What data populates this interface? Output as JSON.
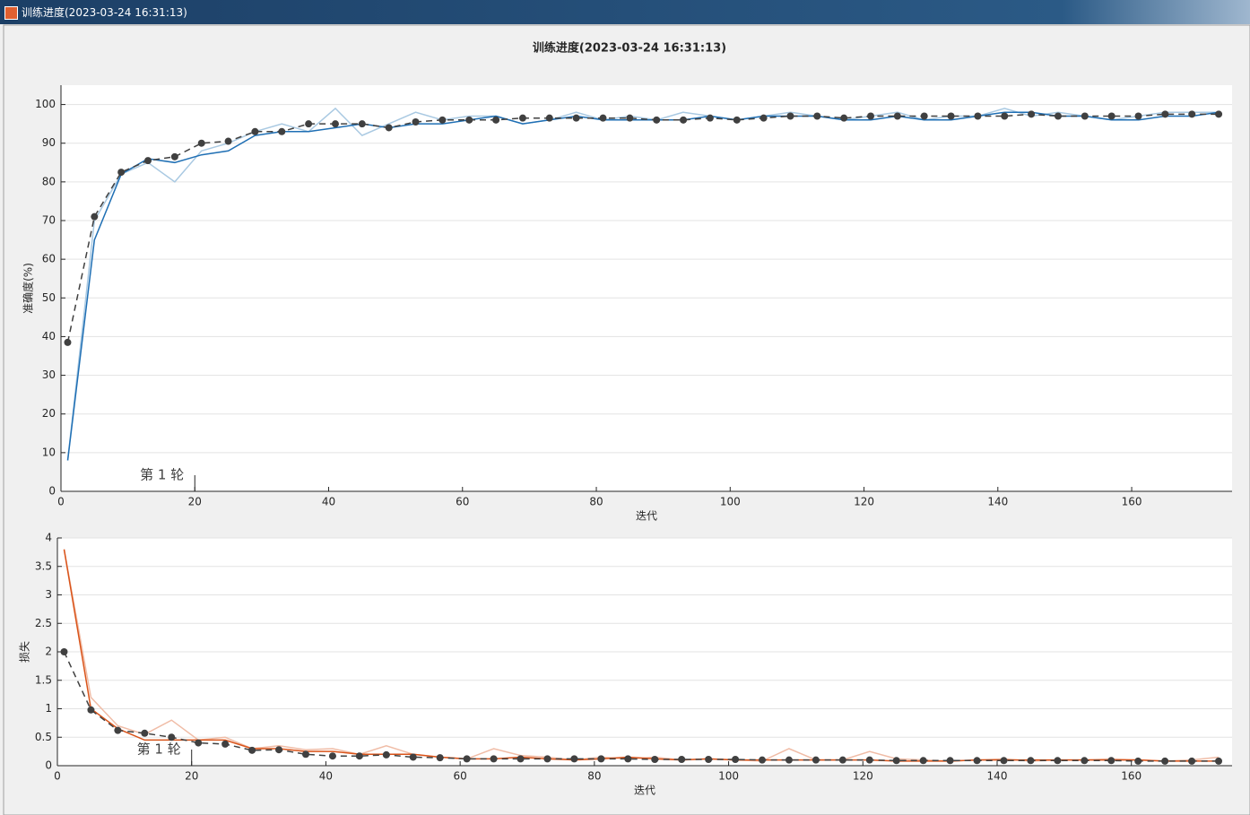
{
  "window": {
    "title": "训练进度(2023-03-24 16:31:13)"
  },
  "chart_data": [
    {
      "type": "line",
      "title": "训练进度(2023-03-24 16:31:13)",
      "xlabel": "迭代",
      "ylabel": "准确度(%)",
      "xlim": [
        0,
        175
      ],
      "ylim": [
        0,
        105
      ],
      "xticks": [
        0,
        20,
        40,
        60,
        80,
        100,
        120,
        140,
        160
      ],
      "yticks": [
        0,
        10,
        20,
        30,
        40,
        50,
        60,
        70,
        80,
        90,
        100
      ],
      "grid": true,
      "annotations": [
        {
          "text": "第 1 轮",
          "x": 20
        }
      ],
      "x": [
        1,
        5,
        9,
        13,
        17,
        21,
        25,
        29,
        33,
        37,
        41,
        45,
        49,
        53,
        57,
        61,
        65,
        69,
        73,
        77,
        81,
        85,
        89,
        93,
        97,
        101,
        105,
        109,
        113,
        117,
        121,
        125,
        129,
        133,
        137,
        141,
        145,
        149,
        153,
        157,
        161,
        165,
        169,
        173
      ],
      "series": [
        {
          "color": "#a9c9e2",
          "line_style": "solid",
          "values": [
            8,
            70,
            82,
            85,
            80,
            88,
            90,
            93,
            95,
            93,
            99,
            92,
            95,
            98,
            96,
            97,
            97,
            95,
            96,
            98,
            96,
            97,
            96,
            98,
            97,
            96,
            97,
            98,
            97,
            96,
            97,
            98,
            96,
            97,
            97,
            99,
            97,
            98,
            97,
            96,
            97,
            98,
            98,
            98
          ]
        },
        {
          "color": "#1f6fb4",
          "line_style": "solid",
          "values": [
            8,
            65,
            82,
            86,
            85,
            87,
            88,
            92,
            93,
            93,
            94,
            95,
            94,
            95,
            95,
            96,
            97,
            95,
            96,
            97,
            96,
            96,
            96,
            96,
            97,
            96,
            97,
            97,
            97,
            96,
            96,
            97,
            96,
            96,
            97,
            98,
            98,
            97,
            97,
            96,
            96,
            97,
            97,
            98
          ]
        },
        {
          "color": "#404040",
          "line_style": "dashed",
          "marker": "circle",
          "values": [
            38.5,
            71,
            82.5,
            85.5,
            86.5,
            90,
            90.5,
            93,
            93,
            95,
            95,
            95,
            94,
            95.5,
            96,
            96,
            96,
            96.5,
            96.5,
            96.5,
            96.5,
            96.5,
            96,
            96,
            96.5,
            96,
            96.5,
            97,
            97,
            96.5,
            97,
            97,
            97,
            97,
            97,
            97,
            97.5,
            97,
            97,
            97,
            97,
            97.5,
            97.5,
            97.5
          ]
        }
      ]
    },
    {
      "type": "line",
      "xlabel": "迭代",
      "ylabel": "损失",
      "xlim": [
        0,
        175
      ],
      "ylim": [
        0,
        4
      ],
      "xticks": [
        0,
        20,
        40,
        60,
        80,
        100,
        120,
        140,
        160
      ],
      "yticks": [
        0,
        0.5,
        1,
        1.5,
        2,
        2.5,
        3,
        3.5,
        4
      ],
      "grid": true,
      "annotations": [
        {
          "text": "第 1 轮",
          "x": 20
        }
      ],
      "x": [
        1,
        5,
        9,
        13,
        17,
        21,
        25,
        29,
        33,
        37,
        41,
        45,
        49,
        53,
        57,
        61,
        65,
        69,
        73,
        77,
        81,
        85,
        89,
        93,
        97,
        101,
        105,
        109,
        113,
        117,
        121,
        125,
        129,
        133,
        137,
        141,
        145,
        149,
        153,
        157,
        161,
        165,
        169,
        173
      ],
      "series": [
        {
          "color": "#f0bca6",
          "line_style": "solid",
          "values": [
            3.8,
            1.2,
            0.7,
            0.55,
            0.8,
            0.45,
            0.5,
            0.3,
            0.35,
            0.28,
            0.3,
            0.2,
            0.35,
            0.2,
            0.15,
            0.12,
            0.3,
            0.18,
            0.15,
            0.1,
            0.15,
            0.12,
            0.15,
            0.1,
            0.12,
            0.1,
            0.08,
            0.3,
            0.1,
            0.1,
            0.25,
            0.12,
            0.1,
            0.08,
            0.1,
            0.12,
            0.08,
            0.1,
            0.1,
            0.12,
            0.1,
            0.08,
            0.1,
            0.15
          ]
        },
        {
          "color": "#d95319",
          "line_style": "solid",
          "values": [
            3.8,
            1.0,
            0.65,
            0.45,
            0.45,
            0.45,
            0.45,
            0.3,
            0.3,
            0.25,
            0.25,
            0.2,
            0.2,
            0.2,
            0.15,
            0.12,
            0.12,
            0.15,
            0.12,
            0.1,
            0.12,
            0.15,
            0.12,
            0.1,
            0.12,
            0.1,
            0.1,
            0.1,
            0.1,
            0.1,
            0.1,
            0.08,
            0.08,
            0.08,
            0.1,
            0.1,
            0.1,
            0.1,
            0.1,
            0.1,
            0.1,
            0.08,
            0.08,
            0.08
          ]
        },
        {
          "color": "#404040",
          "line_style": "dashed",
          "marker": "circle",
          "values": [
            2.0,
            0.98,
            0.62,
            0.57,
            0.5,
            0.4,
            0.38,
            0.27,
            0.28,
            0.2,
            0.17,
            0.17,
            0.19,
            0.15,
            0.14,
            0.12,
            0.12,
            0.12,
            0.12,
            0.12,
            0.12,
            0.12,
            0.11,
            0.11,
            0.11,
            0.11,
            0.1,
            0.1,
            0.1,
            0.1,
            0.1,
            0.09,
            0.09,
            0.09,
            0.09,
            0.09,
            0.09,
            0.09,
            0.09,
            0.09,
            0.08,
            0.08,
            0.08,
            0.08
          ]
        }
      ]
    }
  ]
}
